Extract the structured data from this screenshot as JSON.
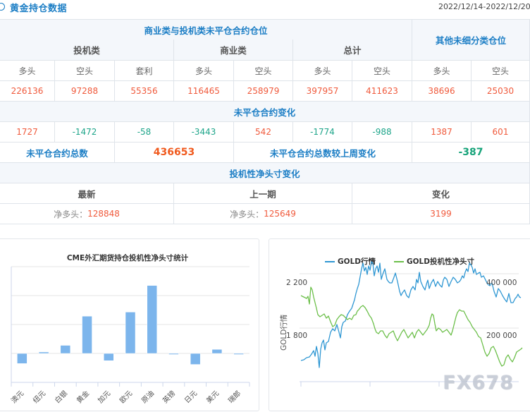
{
  "header": {
    "title": "黄金持仓数据",
    "date_range": "2022/12/14-2022/12/20"
  },
  "table": {
    "group_header": "商业类与投机类未平仓合约仓位",
    "other_header": "其他未细分类仓位",
    "sub_groups": [
      "投机类",
      "商业类",
      "总计"
    ],
    "columns": [
      "多头",
      "空头",
      "套利",
      "多头",
      "空头",
      "多头",
      "空头",
      "多头",
      "空头"
    ],
    "positions": [
      "226136",
      "97288",
      "55356",
      "116465",
      "258979",
      "397957",
      "411623",
      "38696",
      "25030"
    ],
    "change_header": "未平仓合约变化",
    "changes": [
      "1727",
      "-1472",
      "-58",
      "-3443",
      "542",
      "-1774",
      "-988",
      "1387",
      "601"
    ],
    "total_label": "未平仓合约总数",
    "total_value": "436653",
    "total_change_label": "未平仓合约总数较上周变化",
    "total_change_value": "-387",
    "net_header": "投机性净头寸变化",
    "net_columns": [
      "最新",
      "上一期",
      "变化"
    ],
    "net_latest_label": "净多头：",
    "net_latest_value": "128848",
    "net_prev_label": "净多头：",
    "net_prev_value": "125649",
    "net_change_value": "3199"
  },
  "colors": {
    "accent_blue": "#1c7ec5",
    "positive_red": "#f05a3c",
    "negative_green": "#1ea58a",
    "bar_blue": "#7cb5ec",
    "gold_line": "#2f97d3",
    "net_line": "#6cbf4a"
  },
  "chart_data": [
    {
      "type": "bar",
      "title": "CME外汇期货持仓投机性净头寸统计",
      "categories": [
        "澳元",
        "纽元",
        "白银",
        "黄金",
        "加元",
        "欧元",
        "原油",
        "英镑",
        "日元",
        "美元",
        "瑞郎"
      ],
      "values": [
        -35000,
        5000,
        28000,
        128848,
        -25000,
        143000,
        235000,
        -2000,
        -38000,
        14000,
        -2000
      ],
      "xlabel": "",
      "ylabel": "",
      "ylim": [
        -100000,
        300000
      ],
      "grid": true,
      "legend": false
    },
    {
      "type": "line",
      "legend_position": "top",
      "series": [
        {
          "name": "GOLD行情",
          "axis": "left",
          "color": "#2f97d3"
        },
        {
          "name": "GOLD投机性净头寸",
          "axis": "right",
          "color": "#6cbf4a"
        }
      ],
      "left_axis": {
        "title": "GOLD行情",
        "ticks": [
          "2 200",
          "1 800"
        ]
      },
      "right_axis": {
        "ticks": [
          "400 000",
          "200 000"
        ]
      },
      "grid": true
    }
  ],
  "watermark": "FX678"
}
